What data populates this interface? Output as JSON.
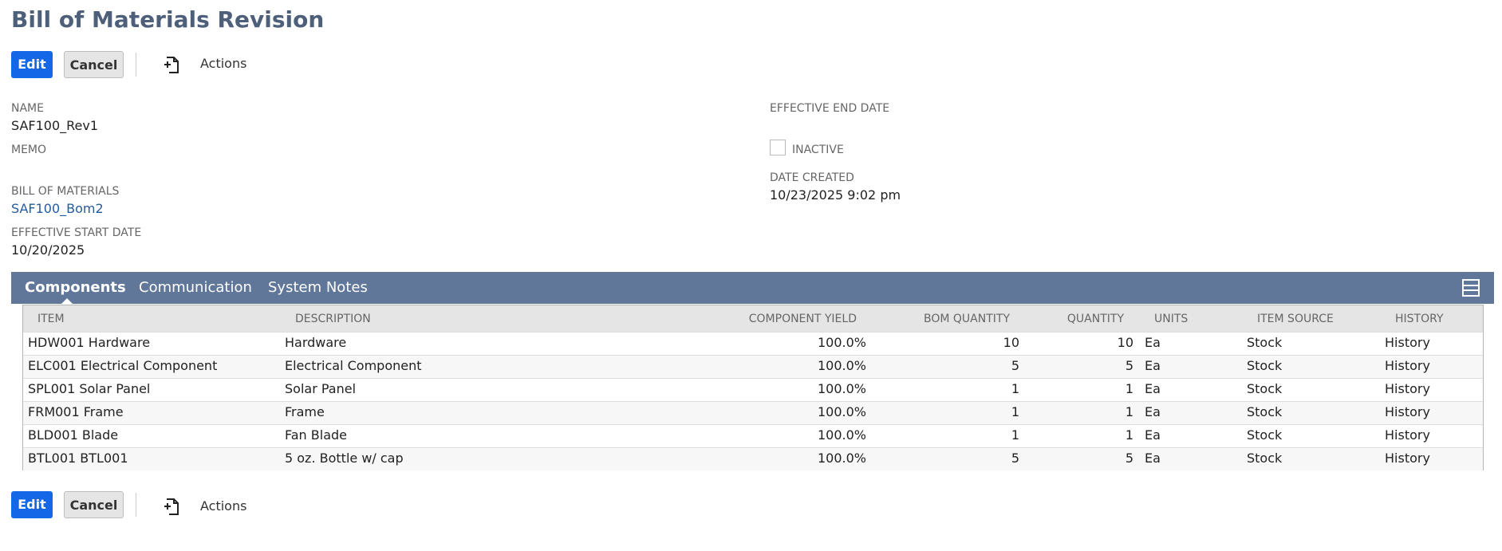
{
  "header": {
    "title": "Bill of Materials Revision"
  },
  "toolbar_top": {
    "edit": "Edit",
    "cancel": "Cancel",
    "actions": "Actions"
  },
  "fields": {
    "name": {
      "label": "NAME",
      "value": "SAF100_Rev1"
    },
    "memo": {
      "label": "MEMO"
    },
    "bill_of_materials": {
      "label": "BILL OF MATERIALS",
      "value": "SAF100_Bom2"
    },
    "effective_start_date": {
      "label": "EFFECTIVE START DATE",
      "value": "10/20/2025"
    },
    "effective_end_date": {
      "label": "EFFECTIVE END DATE"
    },
    "inactive": {
      "label": "INACTIVE"
    },
    "date_created": {
      "label": "DATE CREATED",
      "value": "10/23/2025 9:02 pm"
    }
  },
  "tabs": [
    "Components",
    "Communication",
    "System Notes"
  ],
  "table": {
    "columns": [
      "ITEM",
      "DESCRIPTION",
      "COMPONENT YIELD",
      "BOM QUANTITY",
      "QUANTITY",
      "UNITS",
      "ITEM SOURCE",
      "HISTORY"
    ],
    "rows": [
      [
        "HDW001 Hardware",
        "Hardware",
        "100.0%",
        "10",
        "10",
        "Ea",
        "Stock",
        "History"
      ],
      [
        "ELC001 Electrical Component",
        "Electrical Component",
        "100.0%",
        "5",
        "5",
        "Ea",
        "Stock",
        "History"
      ],
      [
        "SPL001 Solar Panel",
        "Solar Panel",
        "100.0%",
        "1",
        "1",
        "Ea",
        "Stock",
        "History"
      ],
      [
        "FRM001 Frame",
        "Frame",
        "100.0%",
        "1",
        "1",
        "Ea",
        "Stock",
        "History"
      ],
      [
        "BLD001 Blade",
        "Fan Blade",
        "100.0%",
        "1",
        "1",
        "Ea",
        "Stock",
        "History"
      ],
      [
        "BTL001 BTL001",
        "5 oz. Bottle w/ cap",
        "100.0%",
        "5",
        "5",
        "Ea",
        "Stock",
        "History"
      ]
    ]
  },
  "toolbar_bottom": {
    "edit": "Edit",
    "cancel": "Cancel",
    "actions": "Actions"
  }
}
